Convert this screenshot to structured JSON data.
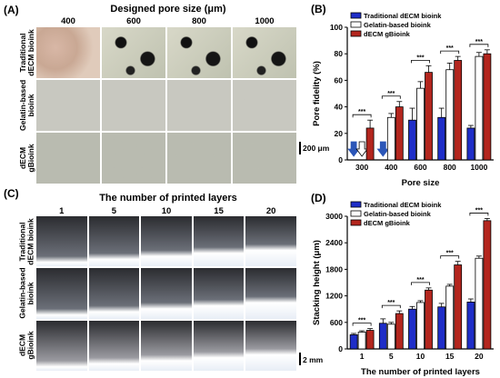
{
  "panel_A": {
    "label": "(A)",
    "header": "Designed pore size (μm)",
    "columns": [
      "400",
      "600",
      "800",
      "1000"
    ],
    "rows": [
      "Traditional\ndECM bioink",
      "Gelatin-based\nbioink",
      "dECM\ngBioink"
    ],
    "scale_bar": "200 μm"
  },
  "panel_C": {
    "label": "(C)",
    "header": "The number of printed layers",
    "columns": [
      "1",
      "5",
      "10",
      "15",
      "20"
    ],
    "rows": [
      "Traditional\ndECM bioink",
      "Gelatin-based\nbioink",
      "dECM\ngBioink"
    ],
    "scale_bar": "2 mm"
  },
  "colors": {
    "traditional": "#1f2ec8",
    "gelatin": "#ffffff",
    "gbioink": "#b3261e",
    "arrow": "#2b56b8"
  },
  "chart_data": [
    {
      "panel": "(B)",
      "type": "bar",
      "categories": [
        "300",
        "400",
        "600",
        "800",
        "1000"
      ],
      "xlabel": "Pore size",
      "ylabel": "Pore fidelity (%)",
      "ylim": [
        0,
        100
      ],
      "yticks": [
        "0",
        "20",
        "40",
        "60",
        "80",
        "100"
      ],
      "legend_position": "top-left",
      "series": [
        {
          "name": "Traditional dECM bioink",
          "values": [
            0,
            0,
            30,
            32,
            24
          ],
          "errors": [
            0,
            0,
            9,
            7,
            2
          ]
        },
        {
          "name": "Gelatin-based bioink",
          "values": [
            0,
            32,
            54,
            68,
            78
          ],
          "errors": [
            0,
            3,
            5,
            5,
            3
          ]
        },
        {
          "name": "dECM gBioink",
          "values": [
            24,
            40,
            66,
            75,
            80
          ],
          "errors": [
            6,
            4,
            5,
            3,
            3
          ]
        }
      ],
      "zero_markers": {
        "Traditional dECM bioink": [
          "300",
          "400"
        ],
        "Gelatin-based bioink": [
          "300"
        ]
      },
      "significance": "***"
    },
    {
      "panel": "(D)",
      "type": "bar",
      "categories": [
        "1",
        "5",
        "10",
        "15",
        "20"
      ],
      "xlabel": "The number of printed layers",
      "ylabel": "Stacking height (μm)",
      "ylim": [
        0,
        3000
      ],
      "yticks": [
        "0",
        "600",
        "1200",
        "1800",
        "2400",
        "3000"
      ],
      "legend_position": "top-left",
      "series": [
        {
          "name": "Traditional dECM bioink",
          "values": [
            320,
            580,
            900,
            950,
            1060
          ],
          "errors": [
            30,
            100,
            60,
            80,
            70
          ]
        },
        {
          "name": "Gelatin-based bioink",
          "values": [
            380,
            560,
            1050,
            1420,
            2050
          ],
          "errors": [
            30,
            40,
            40,
            40,
            50
          ]
        },
        {
          "name": "dECM gBioink",
          "values": [
            420,
            800,
            1330,
            1900,
            2900
          ],
          "errors": [
            40,
            60,
            50,
            80,
            50
          ]
        }
      ],
      "significance": "***"
    }
  ]
}
